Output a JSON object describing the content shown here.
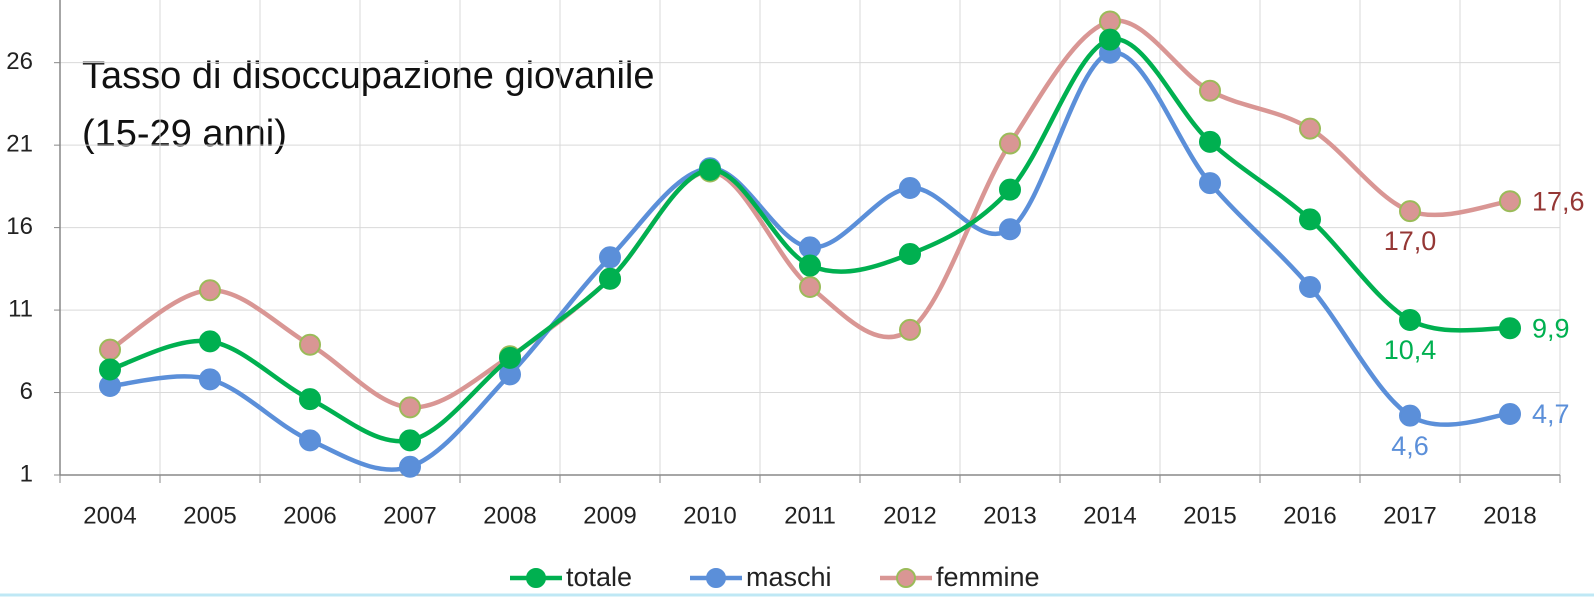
{
  "chart_data": {
    "type": "line",
    "title": [
      "Tasso di disoccupazione giovanile",
      "(15-29 anni)"
    ],
    "categories": [
      "2004",
      "2005",
      "2006",
      "2007",
      "2008",
      "2009",
      "2010",
      "2011",
      "2012",
      "2013",
      "2014",
      "2015",
      "2016",
      "2017",
      "2018"
    ],
    "series": [
      {
        "name": "totale",
        "color": "#00b050",
        "marker_edge": "#00b050",
        "label_color": "#00b050",
        "values": [
          7.4,
          9.1,
          5.6,
          3.1,
          8.1,
          12.9,
          19.5,
          13.7,
          14.4,
          18.3,
          27.4,
          21.2,
          16.5,
          10.4,
          9.9
        ],
        "value_labels": [
          null,
          null,
          null,
          null,
          null,
          null,
          null,
          null,
          null,
          null,
          null,
          null,
          null,
          "10,4",
          "9,9"
        ]
      },
      {
        "name": "maschi",
        "color": "#5b8fd9",
        "marker_edge": "#5b8fd9",
        "label_color": "#5b8fd9",
        "values": [
          6.4,
          6.8,
          3.1,
          1.5,
          7.1,
          14.2,
          19.6,
          14.8,
          18.4,
          15.9,
          26.6,
          18.7,
          12.4,
          4.6,
          4.7
        ],
        "value_labels": [
          null,
          null,
          null,
          null,
          null,
          null,
          null,
          null,
          null,
          null,
          null,
          null,
          null,
          "4,6",
          "4,7"
        ]
      },
      {
        "name": "femmine",
        "color": "#d99694",
        "marker_edge": "#9bbb59",
        "label_color": "#953735",
        "values": [
          8.6,
          12.2,
          8.9,
          5.1,
          8.2,
          12.9,
          19.4,
          12.4,
          9.8,
          21.1,
          28.5,
          24.3,
          22.0,
          17.0,
          17.6
        ],
        "value_labels": [
          null,
          null,
          null,
          null,
          null,
          null,
          null,
          null,
          null,
          null,
          null,
          null,
          null,
          "17,0",
          "17,6"
        ]
      }
    ],
    "ylim": [
      1,
      29.8
    ],
    "yticks": [
      1,
      6,
      11,
      16,
      21,
      26
    ],
    "grid": true,
    "smooth": true,
    "legend": "bottom"
  }
}
